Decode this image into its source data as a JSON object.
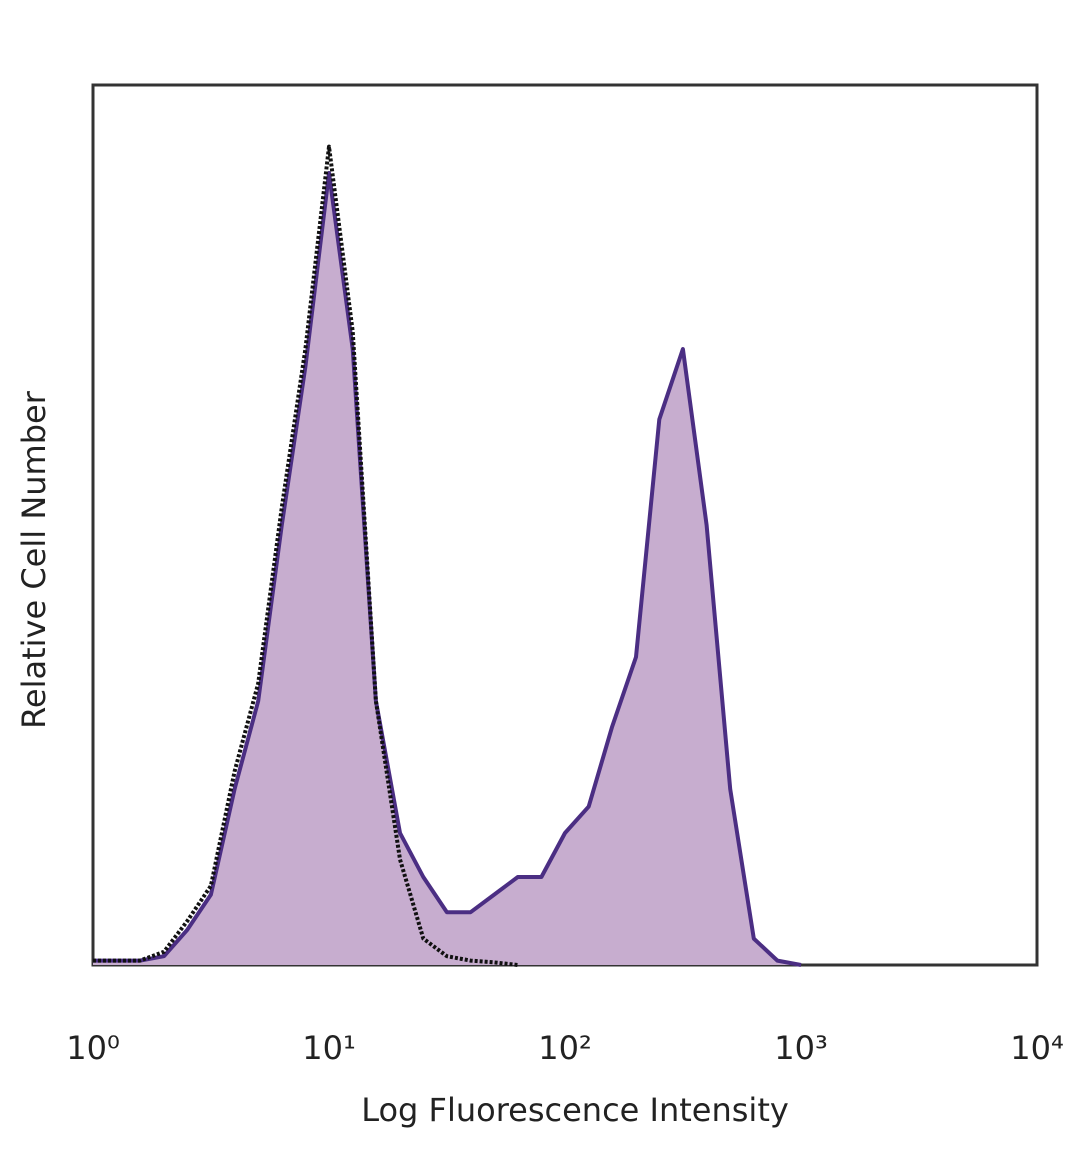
{
  "chart_data": {
    "type": "histogram-overlay",
    "x_label": "Log Fluorescence Intensity",
    "y_label": "Relative Cell Number",
    "x_scale": "log",
    "xlim": [
      1,
      10000
    ],
    "xticks": [
      {
        "value": 1,
        "label": "10⁰"
      },
      {
        "value": 10,
        "label": "10¹"
      },
      {
        "value": 100,
        "label": "10²"
      },
      {
        "value": 1000,
        "label": "10³"
      },
      {
        "value": 10000,
        "label": "10⁴"
      }
    ],
    "ylim": [
      0,
      100
    ],
    "x": [
      1,
      1.26,
      1.58,
      2,
      2.51,
      3.16,
      3.98,
      5.01,
      6.31,
      7.94,
      10,
      12.6,
      15.8,
      20,
      25.1,
      31.6,
      39.8,
      50.1,
      63.1,
      79.4,
      100,
      126,
      158,
      200,
      251,
      316,
      398,
      501,
      631,
      794,
      1000
    ],
    "series": [
      {
        "color": "#4b2e83",
        "fill": "#c7adcf",
        "style": "solid",
        "values": [
          0.5,
          0.5,
          0.5,
          1,
          4,
          8,
          20,
          30,
          50,
          68,
          90,
          70,
          30,
          15,
          10,
          6,
          6,
          8,
          10,
          10,
          15,
          18,
          27,
          35,
          62,
          70,
          50,
          20,
          3,
          0.5,
          0
        ]
      },
      {
        "color": "#111111",
        "style": "dotted",
        "values": [
          0.5,
          0.5,
          0.5,
          1.5,
          5,
          9,
          22,
          32,
          52,
          70,
          93,
          72,
          30,
          12,
          3,
          1,
          0.5,
          0.3,
          0,
          null,
          null,
          null,
          null,
          null,
          null,
          null,
          null,
          null,
          null,
          null,
          null
        ]
      }
    ]
  }
}
